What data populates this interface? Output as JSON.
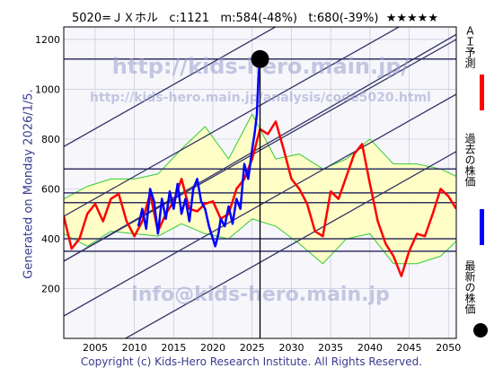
{
  "header": {
    "code": "5020=ＪＸホル",
    "current": "c:1121",
    "min": "m:584(-48%)",
    "target": "t:680(-39%)",
    "stars": "★★★★★"
  },
  "side_text": "Generated on Monday 2026/1/5.",
  "footer": "Copyright (c) Kids-Hero Research Institute. All Rights Reserved.",
  "watermarks": {
    "url": "http://kids-hero.main.jp/",
    "analysis": "http://kids-hero.main.jp/analysis/code5020.html",
    "email": "info@kids-hero.main.jp"
  },
  "legend": {
    "forecast": "ＡＩ予測",
    "past": "過去の株価",
    "latest": "最新の株価"
  },
  "colors": {
    "forecast": "#ff0000",
    "past": "#0000ff",
    "latest": "#000000",
    "band_fill": "#ffffc0",
    "band_line": "#33cc33",
    "trend": "#333366"
  },
  "chart_data": {
    "type": "line",
    "xlim": [
      2001,
      2051
    ],
    "ylim": [
      0,
      1250
    ],
    "x_ticks": [
      2005,
      2010,
      2015,
      2020,
      2025,
      2030,
      2035,
      2040,
      2045,
      2050
    ],
    "y_ticks": [
      200,
      400,
      600,
      800,
      1000,
      1200
    ],
    "grid": true,
    "latest_point": {
      "x": 2026.0,
      "y": 1121
    },
    "horizontal_levels": [
      1121,
      680,
      584,
      545,
      400,
      350
    ],
    "trend_lines": [
      {
        "x": [
          2001,
          2051
        ],
        "y": [
          310,
          1200
        ]
      },
      {
        "x": [
          2001,
          2051
        ],
        "y": [
          90,
          980
        ]
      },
      {
        "x": [
          2001,
          2051
        ],
        "y": [
          490,
          1380
        ]
      },
      {
        "x": [
          2001,
          2051
        ],
        "y": [
          770,
          1660
        ]
      },
      {
        "x": [
          2001,
          2051
        ],
        "y": [
          -140,
          750
        ]
      },
      {
        "x": [
          2001,
          2051
        ],
        "y": [
          310,
          1220
        ]
      }
    ],
    "series": [
      {
        "name": "過去の株価",
        "x": [
          2010.5,
          2011,
          2011.5,
          2012,
          2012.5,
          2013,
          2013.5,
          2014,
          2014.5,
          2015,
          2015.5,
          2016,
          2016.5,
          2017,
          2017.5,
          2018,
          2018.5,
          2019,
          2019.5,
          2020,
          2020.3,
          2020.7,
          2021,
          2021.5,
          2022,
          2022.5,
          2023,
          2023.5,
          2024,
          2024.5,
          2025,
          2025.3,
          2025.6,
          2025.8,
          2026.0
        ],
        "y": [
          450,
          520,
          440,
          600,
          550,
          420,
          560,
          480,
          590,
          520,
          620,
          500,
          560,
          470,
          600,
          640,
          550,
          520,
          450,
          400,
          370,
          420,
          480,
          450,
          530,
          460,
          560,
          520,
          700,
          640,
          760,
          820,
          900,
          1050,
          1121
        ]
      },
      {
        "name": "ＡＩ予測",
        "x": [
          2001,
          2002,
          2003,
          2004,
          2005,
          2006,
          2007,
          2008,
          2009,
          2010,
          2011,
          2012,
          2013,
          2014,
          2015,
          2016,
          2017,
          2018,
          2019,
          2020,
          2021,
          2022,
          2023,
          2024,
          2025,
          2026,
          2027,
          2028,
          2029,
          2030,
          2031,
          2032,
          2033,
          2034,
          2035,
          2036,
          2037,
          2038,
          2039,
          2040,
          2041,
          2042,
          2043,
          2044,
          2045,
          2046,
          2047,
          2048,
          2049,
          2050,
          2051
        ],
        "y": [
          490,
          360,
          400,
          500,
          540,
          470,
          560,
          580,
          470,
          410,
          470,
          580,
          430,
          500,
          550,
          640,
          520,
          510,
          540,
          550,
          480,
          500,
          600,
          640,
          720,
          840,
          820,
          870,
          760,
          640,
          600,
          540,
          430,
          410,
          590,
          560,
          650,
          740,
          780,
          620,
          470,
          380,
          330,
          250,
          350,
          420,
          410,
          500,
          600,
          570,
          520
        ]
      },
      {
        "name": "band_upper",
        "x": [
          2001,
          2004,
          2007,
          2010,
          2013,
          2016,
          2019,
          2022,
          2025,
          2028,
          2031,
          2034,
          2037,
          2040,
          2043,
          2046,
          2049,
          2051
        ],
        "y": [
          560,
          610,
          640,
          640,
          660,
          760,
          850,
          720,
          900,
          720,
          740,
          680,
          720,
          800,
          700,
          700,
          680,
          650
        ]
      },
      {
        "name": "band_lower",
        "x": [
          2001,
          2004,
          2007,
          2010,
          2013,
          2016,
          2019,
          2022,
          2025,
          2028,
          2031,
          2034,
          2037,
          2040,
          2043,
          2046,
          2049,
          2051
        ],
        "y": [
          420,
          370,
          430,
          420,
          410,
          460,
          420,
          400,
          480,
          450,
          380,
          300,
          400,
          420,
          300,
          300,
          330,
          390
        ]
      }
    ]
  }
}
